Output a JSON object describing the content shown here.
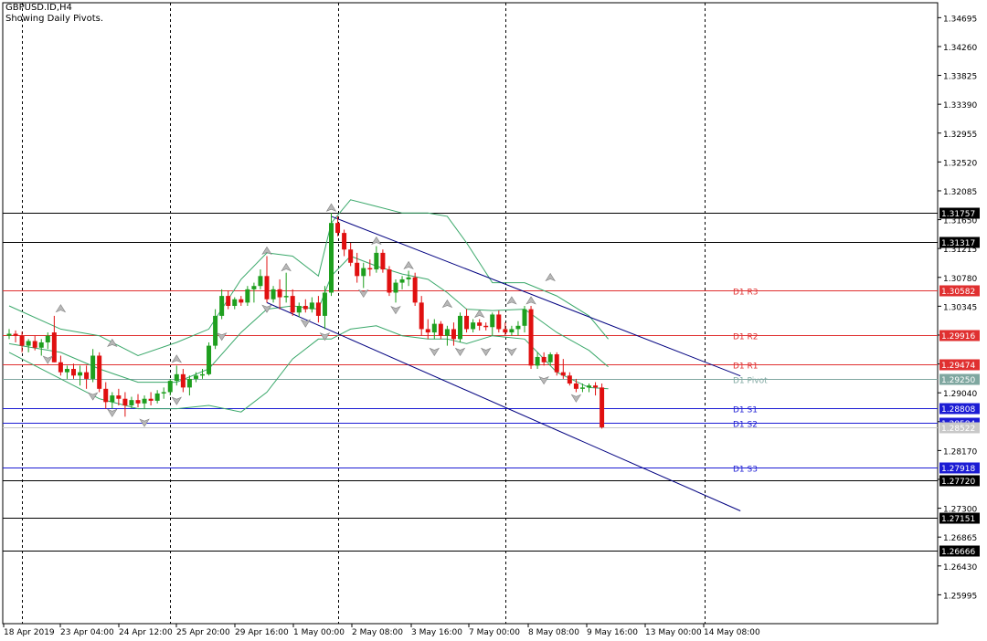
{
  "header": {
    "symbol": "GBPUSD.ID,H4",
    "subtitle": "Showing Daily Pivots."
  },
  "chart_data": {
    "type": "candlestick",
    "symbol": "GBPUSD.ID",
    "timeframe": "H4",
    "y_range": [
      1.2556,
      1.3492
    ],
    "y_ticks": [
      "1.34695",
      "1.34260",
      "1.33825",
      "1.33390",
      "1.32955",
      "1.32520",
      "1.32085",
      "1.31650",
      "1.31215",
      "1.30780",
      "1.30345",
      "1.29910",
      "1.29475",
      "1.29040",
      "1.28605",
      "1.28170",
      "1.27735",
      "1.27300",
      "1.26865",
      "1.26430",
      "1.25995"
    ],
    "x_labels": [
      "18 Apr 2019",
      "23 Apr 04:00",
      "24 Apr 12:00",
      "25 Apr 20:00",
      "29 Apr 16:00",
      "1 May 00:00",
      "2 May 08:00",
      "3 May 16:00",
      "7 May 00:00",
      "8 May 08:00",
      "9 May 16:00",
      "13 May 00:00",
      "14 May 08:00"
    ],
    "pivots": [
      {
        "name": "D1 R3",
        "value": 1.30582,
        "label": "1.30582",
        "color": "#e03030"
      },
      {
        "name": "D1 R2",
        "value": 1.29916,
        "label": "1.29916",
        "color": "#e03030"
      },
      {
        "name": "D1 R1",
        "value": 1.29474,
        "label": "1.29474",
        "color": "#e03030"
      },
      {
        "name": "D1 Pivot",
        "value": 1.2925,
        "label": "1.29250",
        "color": "#7fa7a0"
      },
      {
        "name": "D1 S1",
        "value": 1.28808,
        "label": "1.28808",
        "color": "#1c1cd4"
      },
      {
        "name": "D1 S2",
        "value": 1.28584,
        "label": "1.28584",
        "color": "#1c1cd4"
      },
      {
        "name": "D1 S3",
        "value": 1.27918,
        "label": "1.27918",
        "color": "#1c1cd4"
      }
    ],
    "horizontal_levels": [
      {
        "value": 1.31757,
        "label": "1.31757"
      },
      {
        "value": 1.31317,
        "label": "1.31317"
      },
      {
        "value": 1.2772,
        "label": "1.27720"
      },
      {
        "value": 1.27151,
        "label": "1.27151"
      },
      {
        "value": 1.26666,
        "label": "1.26666"
      }
    ],
    "current_price": {
      "value": 1.28522,
      "label": "1.28522"
    },
    "candles": [
      {
        "o": 1.299,
        "h": 1.3,
        "l": 1.2985,
        "c": 1.2993
      },
      {
        "o": 1.2993,
        "h": 1.2998,
        "l": 1.298,
        "c": 1.299
      },
      {
        "o": 1.299,
        "h": 1.2996,
        "l": 1.2965,
        "c": 1.2975
      },
      {
        "o": 1.2975,
        "h": 1.2985,
        "l": 1.2965,
        "c": 1.2982
      },
      {
        "o": 1.2982,
        "h": 1.299,
        "l": 1.2968,
        "c": 1.2972
      },
      {
        "o": 1.2972,
        "h": 1.2985,
        "l": 1.296,
        "c": 1.298
      },
      {
        "o": 1.298,
        "h": 1.2995,
        "l": 1.297,
        "c": 1.299
      },
      {
        "o": 1.2995,
        "h": 1.302,
        "l": 1.295,
        "c": 1.295
      },
      {
        "o": 1.295,
        "h": 1.296,
        "l": 1.293,
        "c": 1.2935
      },
      {
        "o": 1.2935,
        "h": 1.2945,
        "l": 1.2925,
        "c": 1.294
      },
      {
        "o": 1.294,
        "h": 1.2948,
        "l": 1.2925,
        "c": 1.293
      },
      {
        "o": 1.293,
        "h": 1.2945,
        "l": 1.2915,
        "c": 1.2935
      },
      {
        "o": 1.2935,
        "h": 1.2945,
        "l": 1.291,
        "c": 1.2925
      },
      {
        "o": 1.2925,
        "h": 1.297,
        "l": 1.292,
        "c": 1.296
      },
      {
        "o": 1.296,
        "h": 1.2965,
        "l": 1.2905,
        "c": 1.291
      },
      {
        "o": 1.291,
        "h": 1.292,
        "l": 1.288,
        "c": 1.289
      },
      {
        "o": 1.289,
        "h": 1.2905,
        "l": 1.288,
        "c": 1.29
      },
      {
        "o": 1.29,
        "h": 1.291,
        "l": 1.2885,
        "c": 1.2895
      },
      {
        "o": 1.2895,
        "h": 1.2905,
        "l": 1.2868,
        "c": 1.2885
      },
      {
        "o": 1.2885,
        "h": 1.2898,
        "l": 1.288,
        "c": 1.2893
      },
      {
        "o": 1.2893,
        "h": 1.2902,
        "l": 1.2882,
        "c": 1.2888
      },
      {
        "o": 1.2888,
        "h": 1.29,
        "l": 1.288,
        "c": 1.2895
      },
      {
        "o": 1.2895,
        "h": 1.2905,
        "l": 1.2885,
        "c": 1.2892
      },
      {
        "o": 1.2892,
        "h": 1.2908,
        "l": 1.2888,
        "c": 1.2903
      },
      {
        "o": 1.2903,
        "h": 1.2912,
        "l": 1.2895,
        "c": 1.2905
      },
      {
        "o": 1.2905,
        "h": 1.2925,
        "l": 1.29,
        "c": 1.2922
      },
      {
        "o": 1.2922,
        "h": 1.2945,
        "l": 1.2915,
        "c": 1.2932
      },
      {
        "o": 1.2932,
        "h": 1.294,
        "l": 1.2905,
        "c": 1.2912
      },
      {
        "o": 1.2912,
        "h": 1.293,
        "l": 1.29,
        "c": 1.2925
      },
      {
        "o": 1.2925,
        "h": 1.2935,
        "l": 1.292,
        "c": 1.293
      },
      {
        "o": 1.293,
        "h": 1.294,
        "l": 1.2925,
        "c": 1.2932
      },
      {
        "o": 1.2932,
        "h": 1.298,
        "l": 1.293,
        "c": 1.2975
      },
      {
        "o": 1.2975,
        "h": 1.303,
        "l": 1.297,
        "c": 1.302
      },
      {
        "o": 1.302,
        "h": 1.306,
        "l": 1.3015,
        "c": 1.305
      },
      {
        "o": 1.305,
        "h": 1.3058,
        "l": 1.303,
        "c": 1.3035
      },
      {
        "o": 1.3035,
        "h": 1.3048,
        "l": 1.303,
        "c": 1.3045
      },
      {
        "o": 1.3045,
        "h": 1.305,
        "l": 1.3035,
        "c": 1.304
      },
      {
        "o": 1.304,
        "h": 1.3065,
        "l": 1.3035,
        "c": 1.306
      },
      {
        "o": 1.306,
        "h": 1.307,
        "l": 1.304,
        "c": 1.3065
      },
      {
        "o": 1.3065,
        "h": 1.309,
        "l": 1.306,
        "c": 1.308
      },
      {
        "o": 1.308,
        "h": 1.311,
        "l": 1.304,
        "c": 1.3045
      },
      {
        "o": 1.3045,
        "h": 1.3065,
        "l": 1.304,
        "c": 1.306
      },
      {
        "o": 1.306,
        "h": 1.3075,
        "l": 1.303,
        "c": 1.3048
      },
      {
        "o": 1.3048,
        "h": 1.3085,
        "l": 1.304,
        "c": 1.305
      },
      {
        "o": 1.305,
        "h": 1.306,
        "l": 1.302,
        "c": 1.3025
      },
      {
        "o": 1.3025,
        "h": 1.304,
        "l": 1.3018,
        "c": 1.3035
      },
      {
        "o": 1.3035,
        "h": 1.3045,
        "l": 1.3025,
        "c": 1.303
      },
      {
        "o": 1.303,
        "h": 1.3048,
        "l": 1.3025,
        "c": 1.304
      },
      {
        "o": 1.304,
        "h": 1.305,
        "l": 1.301,
        "c": 1.302
      },
      {
        "o": 1.302,
        "h": 1.3065,
        "l": 1.3,
        "c": 1.3055
      },
      {
        "o": 1.3055,
        "h": 1.3175,
        "l": 1.305,
        "c": 1.316
      },
      {
        "o": 1.316,
        "h": 1.317,
        "l": 1.314,
        "c": 1.3145
      },
      {
        "o": 1.3145,
        "h": 1.315,
        "l": 1.311,
        "c": 1.312
      },
      {
        "o": 1.312,
        "h": 1.313,
        "l": 1.3095,
        "c": 1.31
      },
      {
        "o": 1.31,
        "h": 1.3115,
        "l": 1.307,
        "c": 1.308
      },
      {
        "o": 1.308,
        "h": 1.31,
        "l": 1.3062,
        "c": 1.3092
      },
      {
        "o": 1.3092,
        "h": 1.3105,
        "l": 1.308,
        "c": 1.309
      },
      {
        "o": 1.309,
        "h": 1.3125,
        "l": 1.3085,
        "c": 1.3115
      },
      {
        "o": 1.3115,
        "h": 1.312,
        "l": 1.3085,
        "c": 1.309
      },
      {
        "o": 1.309,
        "h": 1.3095,
        "l": 1.305,
        "c": 1.3055
      },
      {
        "o": 1.3055,
        "h": 1.3075,
        "l": 1.304,
        "c": 1.307
      },
      {
        "o": 1.307,
        "h": 1.308,
        "l": 1.306,
        "c": 1.3075
      },
      {
        "o": 1.3075,
        "h": 1.3088,
        "l": 1.3065,
        "c": 1.3078
      },
      {
        "o": 1.3078,
        "h": 1.3085,
        "l": 1.3035,
        "c": 1.304
      },
      {
        "o": 1.304,
        "h": 1.305,
        "l": 1.299,
        "c": 1.3
      },
      {
        "o": 1.3,
        "h": 1.3015,
        "l": 1.2985,
        "c": 1.2995
      },
      {
        "o": 1.2995,
        "h": 1.3015,
        "l": 1.2985,
        "c": 1.3008
      },
      {
        "o": 1.3008,
        "h": 1.3012,
        "l": 1.2985,
        "c": 1.299
      },
      {
        "o": 1.299,
        "h": 1.3005,
        "l": 1.2975,
        "c": 1.3
      },
      {
        "o": 1.3,
        "h": 1.301,
        "l": 1.2975,
        "c": 1.2985
      },
      {
        "o": 1.2985,
        "h": 1.3025,
        "l": 1.298,
        "c": 1.302
      },
      {
        "o": 1.302,
        "h": 1.303,
        "l": 1.2995,
        "c": 1.3
      },
      {
        "o": 1.3,
        "h": 1.3015,
        "l": 1.2995,
        "c": 1.301
      },
      {
        "o": 1.301,
        "h": 1.3015,
        "l": 1.2998,
        "c": 1.3005
      },
      {
        "o": 1.3005,
        "h": 1.301,
        "l": 1.2998,
        "c": 1.3003
      },
      {
        "o": 1.3003,
        "h": 1.3025,
        "l": 1.299,
        "c": 1.3022
      },
      {
        "o": 1.3022,
        "h": 1.3028,
        "l": 1.2995,
        "c": 1.3
      },
      {
        "o": 1.3,
        "h": 1.301,
        "l": 1.299,
        "c": 1.2995
      },
      {
        "o": 1.2995,
        "h": 1.3005,
        "l": 1.299,
        "c": 1.3
      },
      {
        "o": 1.3,
        "h": 1.3012,
        "l": 1.299,
        "c": 1.3005
      },
      {
        "o": 1.3005,
        "h": 1.3035,
        "l": 1.2995,
        "c": 1.303
      },
      {
        "o": 1.303,
        "h": 1.3035,
        "l": 1.294,
        "c": 1.2945
      },
      {
        "o": 1.2945,
        "h": 1.2965,
        "l": 1.294,
        "c": 1.2958
      },
      {
        "o": 1.2958,
        "h": 1.2965,
        "l": 1.2945,
        "c": 1.295
      },
      {
        "o": 1.295,
        "h": 1.2965,
        "l": 1.2945,
        "c": 1.2962
      },
      {
        "o": 1.2962,
        "h": 1.2965,
        "l": 1.293,
        "c": 1.2935
      },
      {
        "o": 1.2935,
        "h": 1.2955,
        "l": 1.2925,
        "c": 1.293
      },
      {
        "o": 1.293,
        "h": 1.2935,
        "l": 1.2915,
        "c": 1.2918
      },
      {
        "o": 1.2918,
        "h": 1.2925,
        "l": 1.2905,
        "c": 1.291
      },
      {
        "o": 1.291,
        "h": 1.2918,
        "l": 1.2905,
        "c": 1.2912
      },
      {
        "o": 1.2912,
        "h": 1.2918,
        "l": 1.2905,
        "c": 1.2915
      },
      {
        "o": 1.2915,
        "h": 1.292,
        "l": 1.29,
        "c": 1.2912
      },
      {
        "o": 1.2912,
        "h": 1.2918,
        "l": 1.285,
        "c": 1.2852
      }
    ],
    "bollinger": {
      "upper": [
        [
          0,
          1.3035
        ],
        [
          8,
          1.3
        ],
        [
          14,
          1.299
        ],
        [
          20,
          1.296
        ],
        [
          26,
          1.298
        ],
        [
          31,
          1.3
        ],
        [
          36,
          1.3075
        ],
        [
          40,
          1.3115
        ],
        [
          44,
          1.311
        ],
        [
          48,
          1.308
        ],
        [
          50,
          1.316
        ],
        [
          53,
          1.3195
        ],
        [
          57,
          1.3185
        ],
        [
          61,
          1.3175
        ],
        [
          65,
          1.3175
        ],
        [
          68,
          1.317
        ],
        [
          71,
          1.313
        ],
        [
          75,
          1.307
        ],
        [
          80,
          1.307
        ],
        [
          85,
          1.305
        ],
        [
          90,
          1.302
        ],
        [
          93,
          1.2985
        ]
      ],
      "middle": [
        [
          0,
          1.2978
        ],
        [
          8,
          1.2965
        ],
        [
          14,
          1.294
        ],
        [
          20,
          1.292
        ],
        [
          26,
          1.292
        ],
        [
          31,
          1.294
        ],
        [
          36,
          1.2995
        ],
        [
          40,
          1.303
        ],
        [
          44,
          1.3035
        ],
        [
          48,
          1.303
        ],
        [
          50,
          1.308
        ],
        [
          53,
          1.311
        ],
        [
          57,
          1.3095
        ],
        [
          61,
          1.3083
        ],
        [
          65,
          1.3075
        ],
        [
          68,
          1.3055
        ],
        [
          71,
          1.303
        ],
        [
          75,
          1.3028
        ],
        [
          80,
          1.303
        ],
        [
          85,
          1.2995
        ],
        [
          90,
          1.2968
        ],
        [
          93,
          1.2943
        ]
      ],
      "lower": [
        [
          0,
          1.2965
        ],
        [
          8,
          1.2925
        ],
        [
          14,
          1.2895
        ],
        [
          20,
          1.288
        ],
        [
          26,
          1.288
        ],
        [
          31,
          1.2885
        ],
        [
          36,
          1.2875
        ],
        [
          40,
          1.2905
        ],
        [
          44,
          1.2955
        ],
        [
          48,
          1.2985
        ],
        [
          50,
          1.2985
        ],
        [
          53,
          1.3
        ],
        [
          57,
          1.3005
        ],
        [
          61,
          1.299
        ],
        [
          65,
          1.2985
        ],
        [
          68,
          1.2985
        ],
        [
          71,
          1.2978
        ],
        [
          75,
          1.299
        ],
        [
          80,
          1.2985
        ],
        [
          85,
          1.2935
        ],
        [
          90,
          1.2912
        ],
        [
          93,
          1.291
        ]
      ]
    },
    "fractals": {
      "up": [
        [
          8,
          1.303
        ],
        [
          16,
          1.2978
        ],
        [
          26,
          1.2954
        ],
        [
          40,
          1.3117
        ],
        [
          43,
          1.3092
        ],
        [
          50,
          1.3182
        ],
        [
          57,
          1.3132
        ],
        [
          62,
          1.3095
        ],
        [
          68,
          1.3037
        ],
        [
          73,
          1.3022
        ],
        [
          78,
          1.3042
        ],
        [
          81,
          1.3042
        ],
        [
          84,
          1.3077
        ]
      ],
      "down": [
        [
          6,
          1.2955
        ],
        [
          13,
          1.29
        ],
        [
          16,
          1.2875
        ],
        [
          21,
          1.286
        ],
        [
          26,
          1.2893
        ],
        [
          33,
          1.299
        ],
        [
          40,
          1.3032
        ],
        [
          46,
          1.301
        ],
        [
          49,
          1.299
        ],
        [
          55,
          1.3055
        ],
        [
          60,
          1.303
        ],
        [
          66,
          1.2967
        ],
        [
          70,
          1.2967
        ],
        [
          74,
          1.2967
        ],
        [
          78,
          1.2967
        ],
        [
          83,
          1.2924
        ],
        [
          88,
          1.2897
        ]
      ]
    },
    "trend_channel": [
      {
        "from": [
          50,
          1.317
        ],
        "to": [
          113.5,
          1.29295
        ]
      },
      {
        "from": [
          40,
          1.304
        ],
        "to": [
          113.5,
          1.2726
        ]
      }
    ],
    "session_markers": [
      2,
      25,
      51,
      77,
      108
    ]
  },
  "icons": {
    "fractal_up": "arrow-up-icon",
    "fractal_down": "arrow-down-icon"
  },
  "colors": {
    "bull": "#1e9f1e",
    "bear": "#e01010",
    "bands": "#3aa86a",
    "channel": "#000080"
  }
}
